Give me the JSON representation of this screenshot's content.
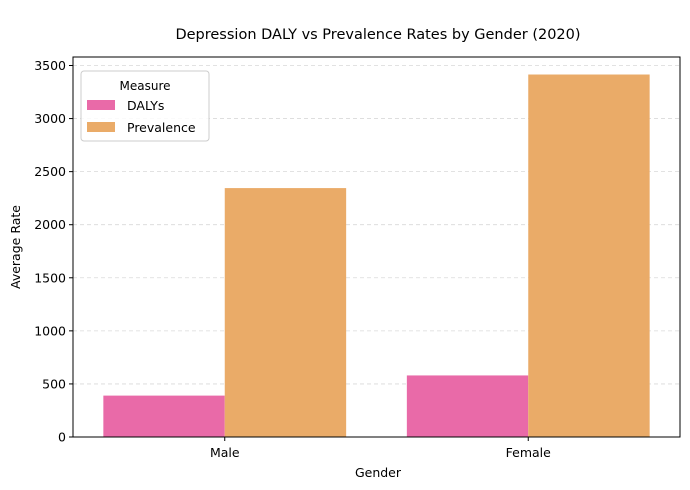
{
  "chart_data": {
    "type": "bar",
    "title": "Depression DALY vs Prevalence Rates by Gender (2020)",
    "xlabel": "Gender",
    "ylabel": "Average Rate",
    "categories": [
      "Male",
      "Female"
    ],
    "series": [
      {
        "name": "DALYs",
        "values": [
          390,
          580
        ],
        "color": "#e96aa8"
      },
      {
        "name": "Prevalence",
        "values": [
          2345,
          3415
        ],
        "color": "#eaab68"
      }
    ],
    "ylim": [
      0,
      3580
    ],
    "yticks": [
      0,
      500,
      1000,
      1500,
      2000,
      2500,
      3000,
      3500
    ],
    "grid": "y-dashed",
    "legend": {
      "title": "Measure",
      "placement": "top-left"
    }
  }
}
